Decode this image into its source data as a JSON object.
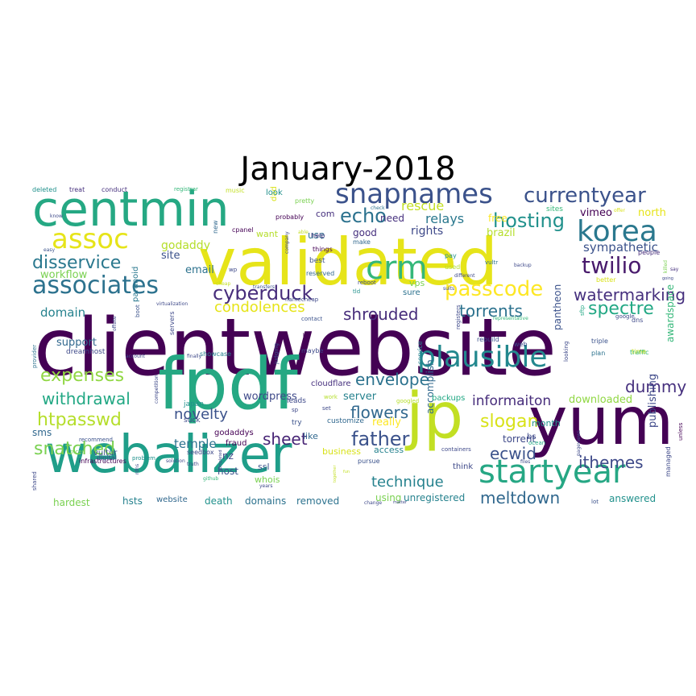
{
  "title": "January-2018",
  "palette": {
    "dark_purple": "#440154",
    "indigo": "#3b528b",
    "blue": "#31688e",
    "teal": "#21918c",
    "green": "#35b779",
    "lime": "#90d743",
    "yellow": "#fde725"
  },
  "words": [
    {
      "text": "clientwebsite",
      "size": 1.0,
      "color": "#440154"
    },
    {
      "text": "validated",
      "size": 0.78,
      "color": "#e6e419"
    },
    {
      "text": "yum",
      "size": 0.74,
      "color": "#440154"
    },
    {
      "text": "fpdf",
      "size": 0.72,
      "color": "#25a883"
    },
    {
      "text": "webalizer",
      "size": 0.7,
      "color": "#1f9e89"
    },
    {
      "text": "jp",
      "size": 0.66,
      "color": "#c2df23"
    },
    {
      "text": "centmin",
      "size": 0.56,
      "color": "#25a883"
    },
    {
      "text": "korea",
      "size": 0.42,
      "color": "#2a788e"
    },
    {
      "text": "startyear",
      "size": 0.4,
      "color": "#26a784"
    },
    {
      "text": "plausible",
      "size": 0.38,
      "color": "#23888e"
    },
    {
      "text": "crm",
      "size": 0.36,
      "color": "#35b779"
    },
    {
      "text": "snapnames",
      "size": 0.34,
      "color": "#3b528b"
    },
    {
      "text": "associates",
      "size": 0.33,
      "color": "#2c728e"
    },
    {
      "text": "assoc",
      "size": 0.32,
      "color": "#e6e419"
    },
    {
      "text": "currentyear",
      "size": 0.27,
      "color": "#3b528b"
    },
    {
      "text": "twilio",
      "size": 0.28,
      "color": "#481a6c"
    },
    {
      "text": "passcode",
      "size": 0.28,
      "color": "#fde725"
    },
    {
      "text": "cyberduck",
      "size": 0.26,
      "color": "#472d7b"
    },
    {
      "text": "hosting",
      "size": 0.25,
      "color": "#21918c"
    },
    {
      "text": "echo",
      "size": 0.25,
      "color": "#2c728e"
    },
    {
      "text": "father",
      "size": 0.25,
      "color": "#3b528b"
    },
    {
      "text": "disservice",
      "size": 0.24,
      "color": "#2a788e"
    },
    {
      "text": "expenses",
      "size": 0.24,
      "color": "#90d743"
    },
    {
      "text": "htpasswd",
      "size": 0.24,
      "color": "#b5de2b"
    },
    {
      "text": "snatched",
      "size": 0.24,
      "color": "#7ad151"
    },
    {
      "text": "withdrawal",
      "size": 0.22,
      "color": "#22a884"
    },
    {
      "text": "watermarking",
      "size": 0.22,
      "color": "#46307e"
    },
    {
      "text": "slogan",
      "size": 0.22,
      "color": "#d8e219"
    },
    {
      "text": "spectre",
      "size": 0.22,
      "color": "#22a884"
    },
    {
      "text": "dummy",
      "size": 0.21,
      "color": "#46307e"
    },
    {
      "text": "meltdown",
      "size": 0.21,
      "color": "#31688e"
    },
    {
      "text": "condolences",
      "size": 0.2,
      "color": "#e6e419"
    },
    {
      "text": "torrents",
      "size": 0.2,
      "color": "#2c728e"
    },
    {
      "text": "shrouded",
      "size": 0.2,
      "color": "#472d7b"
    },
    {
      "text": "envelope",
      "size": 0.2,
      "color": "#2c728e"
    },
    {
      "text": "flowers",
      "size": 0.2,
      "color": "#31688e"
    },
    {
      "text": "ecwid",
      "size": 0.2,
      "color": "#3b528b"
    },
    {
      "text": "sheet",
      "size": 0.2,
      "color": "#482576"
    },
    {
      "text": "technique",
      "size": 0.19,
      "color": "#26828e"
    },
    {
      "text": "ithemes",
      "size": 0.19,
      "color": "#3e4989"
    },
    {
      "text": "novelty",
      "size": 0.18,
      "color": "#3b528b"
    },
    {
      "text": "informaiton",
      "size": 0.17,
      "color": "#472d7b"
    },
    {
      "text": "rescue",
      "size": 0.16,
      "color": "#c2df23"
    },
    {
      "text": "relays",
      "size": 0.16,
      "color": "#2a788e"
    },
    {
      "text": "sympathetic",
      "size": 0.15,
      "color": "#3b528b"
    },
    {
      "text": "domain",
      "size": 0.15,
      "color": "#26828e"
    },
    {
      "text": "temple",
      "size": 0.15,
      "color": "#2c728e"
    },
    {
      "text": "godaddy",
      "size": 0.14,
      "color": "#b5de2b"
    },
    {
      "text": "rights",
      "size": 0.14,
      "color": "#3e4989"
    },
    {
      "text": "brazil",
      "size": 0.13,
      "color": "#b5de2b"
    },
    {
      "text": "vimeo",
      "size": 0.13,
      "color": "#440154"
    },
    {
      "text": "north",
      "size": 0.13,
      "color": "#e6e419"
    },
    {
      "text": "email",
      "size": 0.13,
      "color": "#2c728e"
    },
    {
      "text": "site",
      "size": 0.13,
      "color": "#3b528b"
    },
    {
      "text": "workflow",
      "size": 0.13,
      "color": "#7ad151"
    },
    {
      "text": "support",
      "size": 0.13,
      "color": "#31688e"
    },
    {
      "text": "sms",
      "size": 0.12,
      "color": "#31688e"
    },
    {
      "text": "wordpress",
      "size": 0.13,
      "color": "#3e4989"
    },
    {
      "text": "server",
      "size": 0.13,
      "color": "#26828e"
    },
    {
      "text": "really",
      "size": 0.13,
      "color": "#fde725"
    },
    {
      "text": "downloaded",
      "size": 0.13,
      "color": "#90d743"
    },
    {
      "text": "publishing",
      "size": 0.13,
      "color": "#3e4989"
    },
    {
      "text": "awardspace",
      "size": 0.12,
      "color": "#35b779"
    },
    {
      "text": "pantheon",
      "size": 0.12,
      "color": "#3b528b"
    },
    {
      "text": "torrent",
      "size": 0.12,
      "color": "#3e4989"
    },
    {
      "text": "month",
      "size": 0.11,
      "color": "#21918c"
    },
    {
      "text": "accomplish",
      "size": 0.12,
      "color": "#31688e"
    },
    {
      "text": "access",
      "size": 0.11,
      "color": "#26828e"
    },
    {
      "text": "business",
      "size": 0.11,
      "color": "#d8e219"
    },
    {
      "text": "unregistered",
      "size": 0.12,
      "color": "#26828e"
    },
    {
      "text": "using",
      "size": 0.12,
      "color": "#7ad151"
    },
    {
      "text": "removed",
      "size": 0.12,
      "color": "#2c728e"
    },
    {
      "text": "domains",
      "size": 0.12,
      "color": "#2c728e"
    },
    {
      "text": "death",
      "size": 0.12,
      "color": "#21918c"
    },
    {
      "text": "website",
      "size": 0.1,
      "color": "#31688e"
    },
    {
      "text": "hsts",
      "size": 0.12,
      "color": "#26828e"
    },
    {
      "text": "hardest",
      "size": 0.12,
      "color": "#7ad151"
    },
    {
      "text": "answered",
      "size": 0.12,
      "color": "#21918c"
    },
    {
      "text": "host",
      "size": 0.12,
      "color": "#3b528b"
    },
    {
      "text": "nz",
      "size": 0.12,
      "color": "#3e4989"
    },
    {
      "text": "ssl",
      "size": 0.11,
      "color": "#3b528b"
    },
    {
      "text": "whois",
      "size": 0.11,
      "color": "#7ad151"
    },
    {
      "text": "like",
      "size": 0.11,
      "color": "#31688e"
    },
    {
      "text": "use",
      "size": 0.12,
      "color": "#2c728e"
    },
    {
      "text": "good",
      "size": 0.12,
      "color": "#46307e"
    },
    {
      "text": "need",
      "size": 0.12,
      "color": "#46307e"
    },
    {
      "text": "want",
      "size": 0.11,
      "color": "#b5de2b"
    },
    {
      "text": "free",
      "size": 0.12,
      "color": "#fde725"
    },
    {
      "text": "com",
      "size": 0.11,
      "color": "#46307e"
    },
    {
      "text": "vps",
      "size": 0.11,
      "color": "#7ad151"
    },
    {
      "text": "sure",
      "size": 0.1,
      "color": "#2c728e"
    },
    {
      "text": "vultur",
      "size": 0.1,
      "color": "#3b528b"
    },
    {
      "text": "godaddys",
      "size": 0.1,
      "color": "#440154"
    },
    {
      "text": "fraud",
      "size": 0.1,
      "color": "#440154"
    },
    {
      "text": "cloudflare",
      "size": 0.1,
      "color": "#46307e"
    },
    {
      "text": "customize",
      "size": 0.09,
      "color": "#31688e"
    },
    {
      "text": "japan",
      "size": 0.09,
      "color": "#21918c"
    },
    {
      "text": "suck",
      "size": 0.09,
      "color": "#3e4989"
    },
    {
      "text": "try",
      "size": 0.09,
      "color": "#3b528b"
    },
    {
      "text": "leads",
      "size": 0.09,
      "color": "#3e4989"
    },
    {
      "text": "backups",
      "size": 0.1,
      "color": "#22a884"
    },
    {
      "text": "bs",
      "size": 0.1,
      "color": "#3e4989"
    },
    {
      "text": "think",
      "size": 0.1,
      "color": "#3e4989"
    },
    {
      "text": "dreamhost",
      "size": 0.09,
      "color": "#3e4989"
    },
    {
      "text": "paranoid",
      "size": 0.1,
      "color": "#2a788e"
    },
    {
      "text": "seedbox",
      "size": 0.08,
      "color": "#3e4989"
    },
    {
      "text": "infrastructures",
      "size": 0.08,
      "color": "#440154"
    },
    {
      "text": "showcase",
      "size": 0.08,
      "color": "#26828e"
    },
    {
      "text": "cpanel",
      "size": 0.08,
      "color": "#440154"
    },
    {
      "text": "dad",
      "size": 0.1,
      "color": "#d8e219"
    },
    {
      "text": "look",
      "size": 0.1,
      "color": "#21918c"
    },
    {
      "text": "pretty",
      "size": 0.08,
      "color": "#7ad151"
    },
    {
      "text": "probably",
      "size": 0.08,
      "color": "#440154"
    },
    {
      "text": "help",
      "size": 0.08,
      "color": "#46307e"
    },
    {
      "text": "things",
      "size": 0.08,
      "color": "#440154"
    },
    {
      "text": "best",
      "size": 0.09,
      "color": "#3b528b"
    },
    {
      "text": "make",
      "size": 0.08,
      "color": "#31688e"
    },
    {
      "text": "sites",
      "size": 0.09,
      "color": "#35b779"
    },
    {
      "text": "pay",
      "size": 0.08,
      "color": "#21918c"
    },
    {
      "text": "used",
      "size": 0.08,
      "color": "#b5de2b"
    },
    {
      "text": "reserved",
      "size": 0.08,
      "color": "#31688e"
    },
    {
      "text": "rebuild",
      "size": 0.08,
      "color": "#3b528b"
    },
    {
      "text": "vultr",
      "size": 0.07,
      "color": "#2c728e"
    },
    {
      "text": "better",
      "size": 0.08,
      "color": "#d8e219"
    },
    {
      "text": "people",
      "size": 0.08,
      "color": "#472d7b"
    },
    {
      "text": "google",
      "size": 0.07,
      "color": "#3e4989"
    },
    {
      "text": "dns",
      "size": 0.08,
      "color": "#3e4989"
    },
    {
      "text": "triple",
      "size": 0.08,
      "color": "#3b528b"
    },
    {
      "text": "plan",
      "size": 0.08,
      "color": "#2c728e"
    },
    {
      "text": "traffic",
      "size": 0.08,
      "color": "#35b779"
    },
    {
      "text": "time",
      "size": 0.08,
      "color": "#c2df23"
    },
    {
      "text": "web",
      "size": 0.08,
      "color": "#3e4989"
    },
    {
      "text": "maybe",
      "size": 0.08,
      "color": "#3e4989"
    },
    {
      "text": "contact",
      "size": 0.07,
      "color": "#3b528b"
    },
    {
      "text": "registers",
      "size": 0.07,
      "color": "#3e4989"
    },
    {
      "text": "service",
      "size": 0.08,
      "color": "#26828e"
    },
    {
      "text": "googled",
      "size": 0.07,
      "color": "#b5de2b"
    },
    {
      "text": "work",
      "size": 0.07,
      "color": "#b5de2b"
    },
    {
      "text": "set",
      "size": 0.07,
      "color": "#3e4989"
    },
    {
      "text": "pursue",
      "size": 0.08,
      "color": "#3b528b"
    },
    {
      "text": "containers",
      "size": 0.07,
      "color": "#3e4989"
    },
    {
      "text": "files",
      "size": 0.06,
      "color": "#3e4989"
    },
    {
      "text": "ocean",
      "size": 0.07,
      "color": "#22a884"
    },
    {
      "text": "managed",
      "size": 0.08,
      "color": "#3e4989"
    },
    {
      "text": "lot",
      "size": 0.07,
      "color": "#3b528b"
    },
    {
      "text": "unless",
      "size": 0.07,
      "color": "#440154"
    },
    {
      "text": "deleted",
      "size": 0.08,
      "color": "#21918c"
    },
    {
      "text": "treat",
      "size": 0.08,
      "color": "#46307e"
    },
    {
      "text": "conduct",
      "size": 0.08,
      "color": "#46307e"
    },
    {
      "text": "registrar",
      "size": 0.07,
      "color": "#35b779"
    },
    {
      "text": "music",
      "size": 0.08,
      "color": "#c2df23"
    },
    {
      "text": "easy",
      "size": 0.06,
      "color": "#3b528b"
    },
    {
      "text": "know",
      "size": 0.06,
      "color": "#3e4989"
    },
    {
      "text": "able",
      "size": 0.06,
      "color": "#c2df23"
    },
    {
      "text": "check",
      "size": 0.06,
      "color": "#2c728e"
    },
    {
      "text": "offer",
      "size": 0.06,
      "color": "#d8e219"
    },
    {
      "text": "say",
      "size": 0.06,
      "color": "#46307e"
    },
    {
      "text": "killed",
      "size": 0.06,
      "color": "#7ad151"
    },
    {
      "text": "backup",
      "size": 0.06,
      "color": "#3e4989"
    },
    {
      "text": "recommend",
      "size": 0.07,
      "color": "#3b528b"
    },
    {
      "text": "digital",
      "size": 0.08,
      "color": "#3e4989"
    },
    {
      "text": "problem",
      "size": 0.07,
      "color": "#21918c"
    },
    {
      "text": "solution",
      "size": 0.06,
      "color": "#3e4989"
    },
    {
      "text": "truth",
      "size": 0.06,
      "color": "#3e4989"
    },
    {
      "text": "cheap",
      "size": 0.06,
      "color": "#c2df23"
    },
    {
      "text": "transfers",
      "size": 0.06,
      "color": "#3b528b"
    },
    {
      "text": "virtualization",
      "size": 0.06,
      "color": "#3e4989"
    },
    {
      "text": "representative",
      "size": 0.06,
      "color": "#35b779"
    },
    {
      "text": "different",
      "size": 0.06,
      "color": "#3e4989"
    },
    {
      "text": "suits",
      "size": 0.06,
      "color": "#3e4989"
    },
    {
      "text": "tld",
      "size": 0.07,
      "color": "#21918c"
    },
    {
      "text": "reboot",
      "size": 0.07,
      "color": "#3e4989"
    },
    {
      "text": "namecheap",
      "size": 0.07,
      "color": "#3e4989"
    },
    {
      "text": "account",
      "size": 0.06,
      "color": "#3e4989"
    },
    {
      "text": "nicer",
      "size": 0.07,
      "color": "#7ad151"
    },
    {
      "text": "finally",
      "size": 0.06,
      "color": "#3e4989"
    },
    {
      "text": "github",
      "size": 0.06,
      "color": "#35b779"
    },
    {
      "text": "rdns",
      "size": 0.06,
      "color": "#3e4989"
    },
    {
      "text": "shared",
      "size": 0.07,
      "color": "#3e4989"
    },
    {
      "text": "years",
      "size": 0.06,
      "color": "#3e4989"
    },
    {
      "text": "change",
      "size": 0.06,
      "color": "#3e4989"
    },
    {
      "text": "pageviews",
      "size": 0.06,
      "color": "#3e4989"
    },
    {
      "text": "provider",
      "size": 0.07,
      "color": "#2c728e"
    },
    {
      "text": "offsite",
      "size": 0.06,
      "color": "#3e4989"
    },
    {
      "text": "boot",
      "size": 0.07,
      "color": "#3b528b"
    },
    {
      "text": "servers",
      "size": 0.08,
      "color": "#3e4989"
    },
    {
      "text": "competition",
      "size": 0.06,
      "color": "#3e4989"
    },
    {
      "text": "judging",
      "size": 0.07,
      "color": "#3b528b"
    },
    {
      "text": "company",
      "size": 0.06,
      "color": "#3e4989"
    },
    {
      "text": "looking",
      "size": 0.07,
      "color": "#3e4989"
    },
    {
      "text": "sftp",
      "size": 0.07,
      "color": "#22a884"
    },
    {
      "text": "going",
      "size": 0.05,
      "color": "#3e4989"
    },
    {
      "text": "wp",
      "size": 0.07,
      "color": "#3e4989"
    },
    {
      "text": "new",
      "size": 0.08,
      "color": "#31688e"
    },
    {
      "text": "sp",
      "size": 0.07,
      "color": "#3e4989"
    },
    {
      "text": "h",
      "size": 0.06,
      "color": "#440154"
    },
    {
      "text": "completed",
      "size": 0.05,
      "color": "#3e4989"
    },
    {
      "text": "together",
      "size": 0.05,
      "color": "#c2df23"
    },
    {
      "text": "fun",
      "size": 0.05,
      "color": "#c2df23"
    },
    {
      "text": "matter",
      "size": 0.05,
      "color": "#3e4989"
    }
  ]
}
